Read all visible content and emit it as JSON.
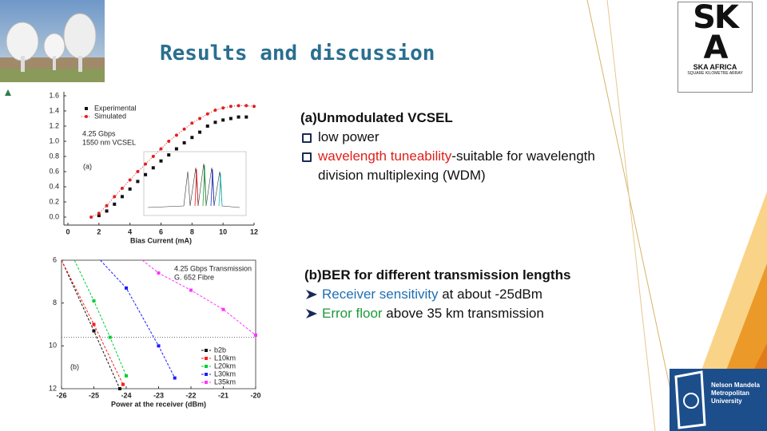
{
  "header": {
    "title": "Results and discussion"
  },
  "text_a": {
    "heading": "(a)Unmodulated VCSEL",
    "bullet_1": "low power",
    "bullet_2_highlight": "wavelength tuneability",
    "bullet_2_rest": "-suitable for wavelength division multiplexing (WDM)"
  },
  "text_b": {
    "heading": "(b)BER for different transmission lengths",
    "bullet_1_highlight": "Receiver sensitivity",
    "bullet_1_rest": " at about -25dBm",
    "bullet_2_highlight": "Error floor",
    "bullet_2_rest": " above 35 km transmission"
  },
  "logos": {
    "ska_top": "SK",
    "ska_bottom": "A",
    "ska_name": "SKA AFRICA",
    "ska_sub": "SQUARE KILOMETRE ARRAY",
    "nmmu": [
      "Nelson Mandela",
      "Metropolitan",
      "University"
    ]
  },
  "chart_data": [
    {
      "type": "line",
      "xlabel": "Bias Current (mA)",
      "xlim": [
        0,
        12
      ],
      "xticks": [
        0,
        2,
        4,
        6,
        8,
        10,
        12
      ],
      "ylim": [
        0,
        1.6
      ],
      "yticks": [
        {
          "value": 0,
          "label": "0.0"
        },
        0.2,
        0.4,
        0.6,
        0.8,
        {
          "value": 1,
          "label": "1.0"
        },
        1.2,
        1.4,
        1.6
      ],
      "invert_y": false,
      "frame": false,
      "legend": "upper left",
      "annotations": [
        "4.25 Gbps",
        "1550 nm VCSEL",
        "(a)"
      ],
      "series": [
        {
          "name": "Experimental",
          "color": "#111111",
          "marker": "square",
          "line": false,
          "x": [
            2,
            2.5,
            3,
            3.5,
            4,
            4.5,
            5,
            5.5,
            6,
            6.5,
            7,
            7.5,
            8,
            8.5,
            9,
            9.5,
            10,
            10.5,
            11,
            11.5
          ],
          "values": [
            0.02,
            0.08,
            0.17,
            0.27,
            0.37,
            0.47,
            0.56,
            0.65,
            0.74,
            0.82,
            0.9,
            0.98,
            1.05,
            1.12,
            1.2,
            1.25,
            1.28,
            1.3,
            1.32,
            1.32
          ]
        },
        {
          "name": "Simulated",
          "color": "#e02020",
          "marker": "circle",
          "line": true,
          "x": [
            1.5,
            2,
            2.5,
            3,
            3.5,
            4,
            4.5,
            5,
            5.5,
            6,
            6.5,
            7,
            7.5,
            8,
            8.5,
            9,
            9.5,
            10,
            10.5,
            11,
            11.5,
            12
          ],
          "values": [
            0,
            0.05,
            0.15,
            0.27,
            0.38,
            0.49,
            0.6,
            0.7,
            0.8,
            0.9,
            1.0,
            1.08,
            1.16,
            1.24,
            1.3,
            1.36,
            1.41,
            1.44,
            1.46,
            1.47,
            1.47,
            1.46
          ]
        }
      ]
    },
    {
      "type": "line",
      "xlabel": "Power at the receiver (dBm)",
      "xlim": [
        -26,
        -20
      ],
      "xticks": [
        -26,
        -25,
        -24,
        -23,
        -22,
        -21,
        -20
      ],
      "ylim": [
        6,
        12
      ],
      "yticks": [
        6,
        8,
        10,
        12
      ],
      "invert_y": true,
      "frame": true,
      "legend": "lower right",
      "annotations": [
        "4.25 Gbps Transmission",
        "G. 652 Fibre",
        "(b)"
      ],
      "reference_line": 9.6,
      "series": [
        {
          "name": "b2b",
          "color": "#111111",
          "marker": "square",
          "line": true,
          "x": [
            -26,
            -25,
            -24.2
          ],
          "values": [
            6.0,
            9.3,
            12.0
          ]
        },
        {
          "name": "L10km",
          "color": "#ff1a1a",
          "marker": "square",
          "line": true,
          "x": [
            -26,
            -25,
            -24.1
          ],
          "values": [
            6.0,
            9.0,
            11.8
          ]
        },
        {
          "name": "L20km",
          "color": "#00cc33",
          "marker": "square",
          "line": true,
          "x": [
            -25.6,
            -25,
            -24.5,
            -24
          ],
          "values": [
            6.0,
            7.9,
            9.6,
            11.4
          ]
        },
        {
          "name": "L30km",
          "color": "#1a1aff",
          "marker": "square",
          "line": true,
          "x": [
            -24.8,
            -24,
            -23,
            -22.5
          ],
          "values": [
            6.0,
            7.3,
            10.0,
            11.5
          ]
        },
        {
          "name": "L35km",
          "color": "#ff33ff",
          "marker": "square",
          "line": true,
          "x": [
            -23.5,
            -23,
            -22,
            -21,
            -20
          ],
          "values": [
            6.0,
            6.6,
            7.4,
            8.3,
            9.5
          ]
        }
      ]
    }
  ]
}
